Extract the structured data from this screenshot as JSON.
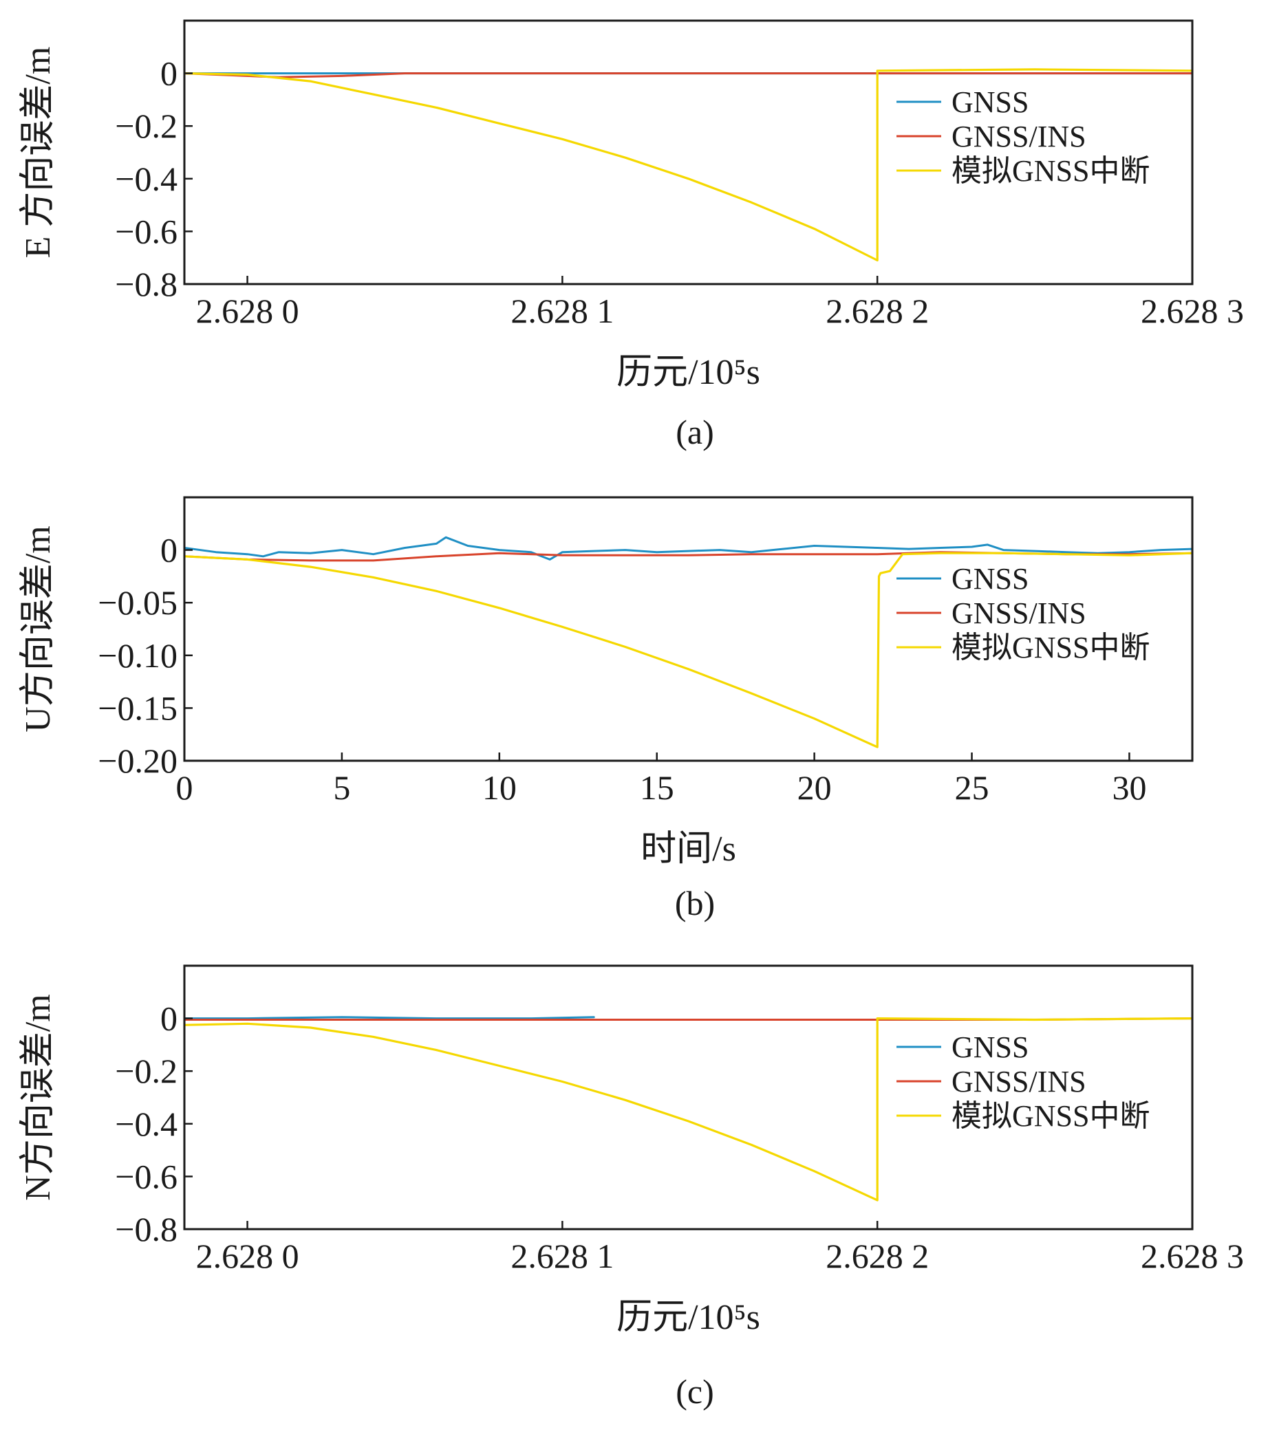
{
  "figure": {
    "panels": [
      {
        "caption": "(a)",
        "xlabel": "历元/10⁵s",
        "ylabel": "E 方向误差/m"
      },
      {
        "caption": "(b)",
        "xlabel": "时间/s",
        "ylabel": "U方向误差/m"
      },
      {
        "caption": "(c)",
        "xlabel": "历元/10⁵s",
        "ylabel": "N方向误差/m"
      }
    ]
  },
  "colors": {
    "GNSS": "#1f8fc4",
    "GNSS/INS": "#d8432b",
    "模拟GNSS中断": "#f5d800"
  },
  "chart_data": [
    {
      "type": "line",
      "panel": "a",
      "title": "",
      "xlabel": "历元/10⁵s",
      "ylabel": "E 方向误差/m",
      "xlim": [
        2.62798,
        2.6283
      ],
      "ylim": [
        -0.8,
        0.2
      ],
      "xticks": [
        2.628,
        2.6281,
        2.6282,
        2.6283
      ],
      "xtick_labels": [
        "2.628 0",
        "2.628 1",
        "2.628 2",
        "2.628 3"
      ],
      "yticks": [
        0,
        -0.2,
        -0.4,
        -0.6,
        -0.8
      ],
      "ytick_labels": [
        "0",
        "−0.2",
        "−0.4",
        "−0.6",
        "−0.8"
      ],
      "legend": {
        "position": "right",
        "entries": [
          "GNSS",
          "GNSS/INS",
          "模拟GNSS中断"
        ]
      },
      "series": [
        {
          "name": "GNSS",
          "x": [
            2.62798,
            2.628,
            2.62805,
            2.6281,
            2.62815,
            2.6282,
            2.62825,
            2.6283
          ],
          "y": [
            0.0,
            0.0,
            0.0,
            0.0,
            0.0,
            0.0,
            0.0,
            0.0
          ]
        },
        {
          "name": "GNSS/INS",
          "x": [
            2.62798,
            2.628,
            2.62801,
            2.62803,
            2.62805,
            2.6281,
            2.62815,
            2.6282,
            2.62825,
            2.6283
          ],
          "y": [
            0.0,
            -0.01,
            -0.015,
            -0.01,
            0.0,
            0.0,
            0.0,
            0.0,
            0.0,
            0.0
          ]
        },
        {
          "name": "模拟GNSS中断",
          "x": [
            2.62798,
            2.628,
            2.62802,
            2.62804,
            2.62806,
            2.62808,
            2.6281,
            2.62812,
            2.62814,
            2.62816,
            2.62818,
            2.6282,
            2.6282,
            2.62825,
            2.6283
          ],
          "y": [
            0.0,
            -0.005,
            -0.03,
            -0.08,
            -0.13,
            -0.19,
            -0.25,
            -0.32,
            -0.4,
            -0.49,
            -0.59,
            -0.71,
            0.01,
            0.015,
            0.01
          ]
        }
      ]
    },
    {
      "type": "line",
      "panel": "b",
      "title": "",
      "xlabel": "时间/s",
      "ylabel": "U方向误差/m",
      "xlim": [
        0,
        32
      ],
      "ylim": [
        -0.2,
        0.05
      ],
      "xticks": [
        0,
        5,
        10,
        15,
        20,
        25,
        30
      ],
      "xtick_labels": [
        "0",
        "5",
        "10",
        "15",
        "20",
        "25",
        "30"
      ],
      "yticks": [
        0,
        -0.05,
        -0.1,
        -0.15,
        -0.2
      ],
      "ytick_labels": [
        "0",
        "−0.05",
        "−0.10",
        "−0.15",
        "−0.20"
      ],
      "legend": {
        "position": "right",
        "entries": [
          "GNSS",
          "GNSS/INS",
          "模拟GNSS中断"
        ]
      },
      "series": [
        {
          "name": "GNSS",
          "x": [
            0,
            1,
            2,
            2.5,
            3,
            4,
            5,
            6,
            7,
            8,
            8.3,
            9,
            10,
            11,
            11.6,
            12,
            13,
            14,
            15,
            16,
            17,
            18,
            19,
            20,
            21,
            22,
            23,
            24,
            25,
            25.5,
            26,
            27,
            28,
            29,
            30,
            31,
            32
          ],
          "y": [
            0.002,
            -0.002,
            -0.004,
            -0.006,
            -0.002,
            -0.003,
            0.0,
            -0.004,
            0.002,
            0.006,
            0.012,
            0.004,
            0.0,
            -0.002,
            -0.009,
            -0.002,
            -0.001,
            0.0,
            -0.002,
            -0.001,
            0.0,
            -0.002,
            0.001,
            0.004,
            0.003,
            0.002,
            0.001,
            0.002,
            0.003,
            0.005,
            0.0,
            -0.001,
            -0.002,
            -0.003,
            -0.002,
            0.0,
            0.001
          ]
        },
        {
          "name": "GNSS/INS",
          "x": [
            0,
            2,
            4,
            6,
            8,
            10,
            12,
            14,
            16,
            18,
            20,
            22,
            24,
            26,
            28,
            30,
            32
          ],
          "y": [
            -0.006,
            -0.009,
            -0.01,
            -0.01,
            -0.006,
            -0.003,
            -0.005,
            -0.005,
            -0.005,
            -0.004,
            -0.004,
            -0.004,
            -0.002,
            -0.003,
            -0.004,
            -0.004,
            -0.003
          ]
        },
        {
          "name": "模拟GNSS中断",
          "x": [
            0,
            2,
            4,
            6,
            8,
            10,
            12,
            14,
            16,
            18,
            20,
            22,
            22.05,
            22.1,
            22.4,
            22.8,
            24,
            26,
            28,
            30,
            32
          ],
          "y": [
            -0.006,
            -0.009,
            -0.016,
            -0.026,
            -0.039,
            -0.055,
            -0.073,
            -0.092,
            -0.113,
            -0.136,
            -0.16,
            -0.187,
            -0.025,
            -0.022,
            -0.02,
            -0.004,
            -0.003,
            -0.003,
            -0.004,
            -0.005,
            -0.003
          ]
        }
      ]
    },
    {
      "type": "line",
      "panel": "c",
      "title": "",
      "xlabel": "历元/10⁵s",
      "ylabel": "N方向误差/m",
      "xlim": [
        2.62798,
        2.6283
      ],
      "ylim": [
        -0.8,
        0.2
      ],
      "xticks": [
        2.628,
        2.6281,
        2.6282,
        2.6283
      ],
      "xtick_labels": [
        "2.628 0",
        "2.628 1",
        "2.628 2",
        "2.628 3"
      ],
      "yticks": [
        0,
        -0.2,
        -0.4,
        -0.6,
        -0.8
      ],
      "ytick_labels": [
        "0",
        "−0.2",
        "−0.4",
        "−0.6",
        "−0.8"
      ],
      "legend": {
        "position": "right",
        "entries": [
          "GNSS",
          "GNSS/INS",
          "模拟GNSS中断"
        ]
      },
      "series": [
        {
          "name": "GNSS",
          "x": [
            2.62798,
            2.628,
            2.62803,
            2.62806,
            2.62809,
            2.62811
          ],
          "y": [
            0.0,
            0.0,
            0.005,
            0.0,
            0.0,
            0.005
          ]
        },
        {
          "name": "GNSS/INS",
          "x": [
            2.62798,
            2.62805,
            2.6281,
            2.62815,
            2.6282,
            2.62825,
            2.6283
          ],
          "y": [
            -0.005,
            -0.005,
            -0.005,
            -0.005,
            -0.005,
            -0.005,
            0.0
          ]
        },
        {
          "name": "模拟GNSS中断",
          "x": [
            2.62798,
            2.628,
            2.62802,
            2.62804,
            2.62806,
            2.62808,
            2.6281,
            2.62812,
            2.62814,
            2.62816,
            2.62818,
            2.6282,
            2.6282,
            2.62825,
            2.6283
          ],
          "y": [
            -0.025,
            -0.02,
            -0.035,
            -0.07,
            -0.12,
            -0.18,
            -0.24,
            -0.31,
            -0.39,
            -0.48,
            -0.58,
            -0.69,
            0.0,
            -0.005,
            0.0
          ]
        }
      ]
    }
  ]
}
